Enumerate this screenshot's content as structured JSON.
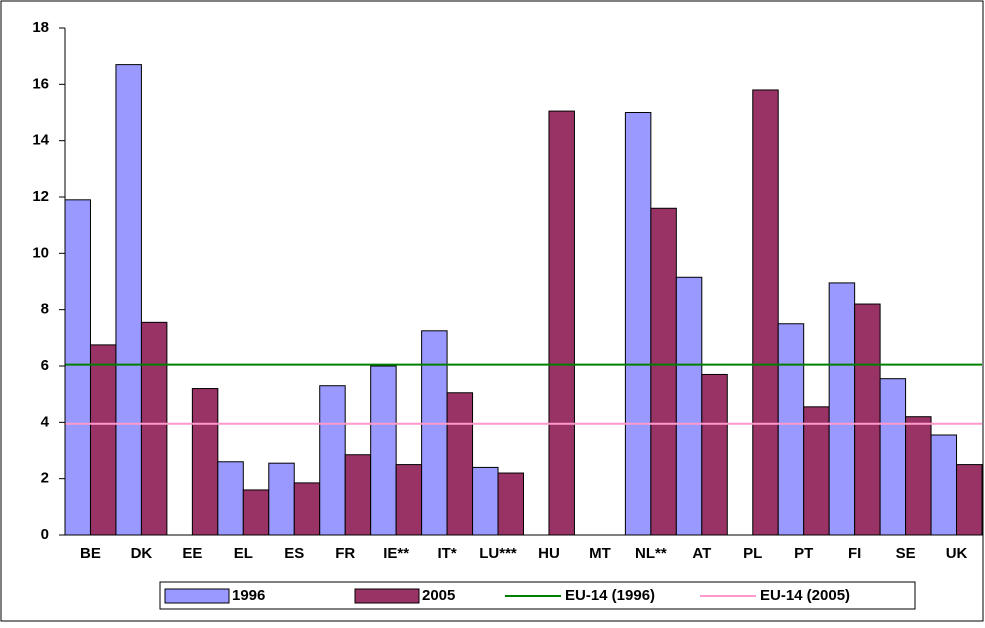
{
  "chart_data": {
    "type": "bar",
    "categories": [
      "BE",
      "DK",
      "EE",
      "EL",
      "ES",
      "FR",
      "IE**",
      "IT*",
      "LU***",
      "HU",
      "MT",
      "NL**",
      "AT",
      "PL",
      "PT",
      "FI",
      "SE",
      "UK"
    ],
    "series": [
      {
        "name": "1996",
        "color": "#9999ff",
        "values": [
          11.9,
          16.7,
          null,
          2.6,
          2.55,
          5.3,
          6.0,
          7.25,
          2.4,
          null,
          null,
          15.0,
          9.15,
          null,
          7.5,
          8.95,
          5.55,
          3.55
        ]
      },
      {
        "name": "2005",
        "color": "#993366",
        "values": [
          6.75,
          7.55,
          5.2,
          1.6,
          1.85,
          2.85,
          2.5,
          5.05,
          2.2,
          15.05,
          null,
          11.6,
          5.7,
          15.8,
          4.55,
          8.2,
          4.2,
          2.5
        ]
      }
    ],
    "reference_lines": [
      {
        "name": "EU-14 (1996)",
        "color": "#008000",
        "value": 6.05
      },
      {
        "name": "EU-14 (2005)",
        "color": "#ff99cc",
        "value": 3.95
      }
    ],
    "ylim": [
      0,
      18
    ],
    "yticks": [
      0,
      2,
      4,
      6,
      8,
      10,
      12,
      14,
      16,
      18
    ],
    "grid": false,
    "legend": "bottom"
  }
}
